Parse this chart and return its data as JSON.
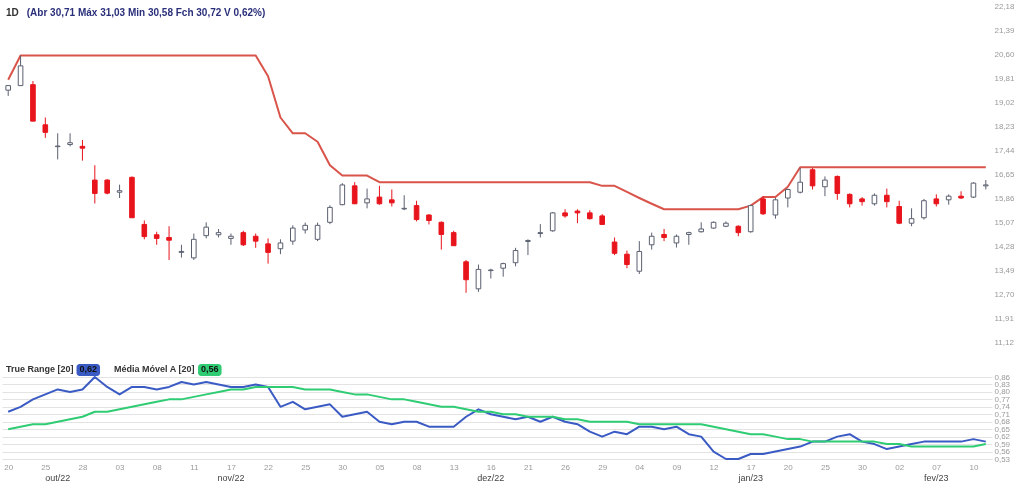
{
  "chart_data": [
    {
      "type": "candlestick",
      "title": "1D",
      "annotations": [
        "(Abr 30,71 Máx 31,03 Min 30,58 Fch 30,72 V 0,62%)"
      ],
      "categories": [
        "20",
        null,
        null,
        "25",
        null,
        null,
        "28",
        null,
        null,
        "03",
        null,
        null,
        "08",
        null,
        null,
        "11",
        null,
        null,
        "17",
        null,
        null,
        "22",
        null,
        null,
        "25",
        null,
        null,
        "30",
        null,
        null,
        "05",
        null,
        null,
        "08",
        null,
        null,
        "13",
        null,
        null,
        "16",
        null,
        null,
        "21",
        null,
        null,
        "26",
        null,
        null,
        "29",
        null,
        null,
        "04",
        null,
        null,
        "09",
        null,
        null,
        "12",
        null,
        null,
        "17",
        null,
        null,
        "20",
        null,
        null,
        "25",
        null,
        null,
        "30",
        null,
        null,
        "02",
        null,
        null,
        "07",
        null,
        null,
        "10",
        null
      ],
      "ohlc": [
        [
          19.41,
          19.58,
          19.22,
          19.56
        ],
        [
          19.56,
          20.55,
          19.56,
          20.21
        ],
        [
          19.59,
          19.71,
          18.39,
          18.39
        ],
        [
          18.27,
          18.51,
          17.84,
          18.02
        ],
        [
          17.55,
          17.99,
          17.13,
          17.57
        ],
        [
          17.62,
          17.99,
          17.56,
          17.68
        ],
        [
          17.56,
          17.77,
          17.09,
          17.5
        ],
        [
          16.45,
          16.94,
          15.68,
          16.01
        ],
        [
          16.45,
          16.48,
          15.98,
          16.02
        ],
        [
          16.05,
          16.3,
          15.86,
          16.1
        ],
        [
          16.54,
          16.57,
          15.21,
          15.21
        ],
        [
          14.99,
          15.12,
          14.5,
          14.59
        ],
        [
          14.65,
          14.75,
          14.32,
          14.53
        ],
        [
          14.56,
          14.93,
          13.82,
          14.47
        ],
        [
          14.07,
          14.32,
          13.9,
          14.1
        ],
        [
          13.89,
          14.69,
          13.82,
          14.5
        ],
        [
          14.62,
          15.06,
          14.53,
          14.9
        ],
        [
          14.65,
          14.84,
          14.56,
          14.72
        ],
        [
          14.53,
          14.69,
          14.32,
          14.6
        ],
        [
          14.72,
          14.78,
          14.28,
          14.32
        ],
        [
          14.6,
          14.69,
          14.22,
          14.44
        ],
        [
          14.35,
          14.53,
          13.7,
          14.07
        ],
        [
          14.19,
          14.5,
          14.01,
          14.38
        ],
        [
          14.44,
          14.96,
          14.32,
          14.87
        ],
        [
          14.81,
          15.05,
          14.69,
          14.96
        ],
        [
          14.5,
          15.05,
          14.44,
          14.96
        ],
        [
          15.06,
          15.62,
          15.0,
          15.55
        ],
        [
          15.64,
          16.35,
          15.62,
          16.29
        ],
        [
          16.26,
          16.38,
          15.67,
          15.67
        ],
        [
          15.7,
          16.17,
          15.52,
          15.83
        ],
        [
          15.89,
          16.26,
          15.64,
          15.67
        ],
        [
          15.8,
          16.14,
          15.58,
          15.7
        ],
        [
          15.5,
          15.95,
          15.46,
          15.52
        ],
        [
          15.61,
          15.77,
          15.09,
          15.15
        ],
        [
          15.3,
          15.33,
          14.99,
          15.12
        ],
        [
          15.06,
          15.09,
          14.16,
          14.66
        ],
        [
          14.72,
          14.78,
          14.29,
          14.29
        ],
        [
          13.76,
          13.82,
          12.74,
          13.17
        ],
        [
          12.87,
          13.67,
          12.77,
          13.51
        ],
        [
          13.47,
          13.53,
          13.21,
          13.49
        ],
        [
          13.55,
          13.73,
          13.27,
          13.7
        ],
        [
          13.73,
          14.22,
          13.61,
          14.13
        ],
        [
          14.43,
          14.5,
          13.98,
          14.46
        ],
        [
          14.69,
          15.0,
          14.56,
          14.72
        ],
        [
          14.78,
          15.4,
          14.75,
          15.37
        ],
        [
          15.37,
          15.49,
          15.21,
          15.27
        ],
        [
          15.43,
          15.49,
          15.03,
          15.37
        ],
        [
          15.37,
          15.46,
          15.15,
          15.18
        ],
        [
          15.27,
          15.33,
          14.99,
          14.99
        ],
        [
          14.41,
          14.56,
          13.98,
          14.04
        ],
        [
          14.01,
          14.13,
          13.55,
          13.67
        ],
        [
          13.45,
          14.44,
          13.36,
          14.1
        ],
        [
          14.32,
          14.72,
          14.16,
          14.6
        ],
        [
          14.66,
          14.84,
          14.44,
          14.56
        ],
        [
          14.38,
          14.66,
          14.23,
          14.6
        ],
        [
          14.66,
          14.75,
          14.32,
          14.72
        ],
        [
          14.75,
          15.06,
          14.72,
          14.84
        ],
        [
          14.87,
          15.09,
          14.84,
          15.06
        ],
        [
          14.93,
          15.09,
          14.9,
          15.03
        ],
        [
          14.93,
          14.96,
          14.6,
          14.72
        ],
        [
          14.75,
          15.64,
          14.72,
          15.61
        ],
        [
          15.83,
          15.92,
          15.3,
          15.34
        ],
        [
          15.3,
          15.86,
          15.18,
          15.8
        ],
        [
          15.86,
          16.17,
          15.55,
          16.14
        ],
        [
          16.05,
          16.85,
          16.01,
          16.38
        ],
        [
          16.79,
          16.85,
          16.14,
          16.26
        ],
        [
          16.23,
          16.57,
          15.92,
          16.45
        ],
        [
          16.57,
          16.6,
          15.8,
          16.01
        ],
        [
          15.98,
          16.01,
          15.55,
          15.67
        ],
        [
          15.83,
          15.89,
          15.61,
          15.74
        ],
        [
          15.67,
          16.01,
          15.61,
          15.95
        ],
        [
          15.95,
          16.17,
          15.55,
          15.74
        ],
        [
          15.58,
          15.77,
          15.0,
          15.03
        ],
        [
          15.03,
          15.52,
          14.93,
          15.18
        ],
        [
          15.21,
          15.83,
          15.15,
          15.77
        ],
        [
          15.83,
          15.98,
          15.58,
          15.67
        ],
        [
          15.8,
          15.98,
          15.64,
          15.92
        ],
        [
          15.92,
          16.08,
          15.83,
          15.86
        ],
        [
          15.89,
          16.38,
          15.86,
          16.35
        ],
        [
          16.26,
          16.45,
          16.14,
          16.29
        ]
      ],
      "colors": [
        "#ffffff",
        "#ffffff",
        "#e8141c",
        "#e8141c",
        "#ffffff",
        "#ffffff",
        "#e8141c",
        "#e8141c",
        "#e8141c",
        "#ffffff",
        "#e8141c",
        "#e8141c",
        "#e8141c",
        "#e8141c",
        "#ffffff",
        "#ffffff",
        "#ffffff",
        "#ffffff",
        "#ffffff",
        "#e8141c",
        "#e8141c",
        "#e8141c",
        "#ffffff",
        "#ffffff",
        "#ffffff",
        "#ffffff",
        "#ffffff",
        "#ffffff",
        "#e8141c",
        "#ffffff",
        "#e8141c",
        "#e8141c",
        "#ffffff",
        "#e8141c",
        "#e8141c",
        "#e8141c",
        "#e8141c",
        "#e8141c",
        "#ffffff",
        "#ffffff",
        "#ffffff",
        "#ffffff",
        "#ffffff",
        "#ffffff",
        "#ffffff",
        "#e8141c",
        "#e8141c",
        "#e8141c",
        "#e8141c",
        "#e8141c",
        "#e8141c",
        "#ffffff",
        "#ffffff",
        "#e8141c",
        "#ffffff",
        "#ffffff",
        "#ffffff",
        "#ffffff",
        "#ffffff",
        "#e8141c",
        "#ffffff",
        "#e8141c",
        "#ffffff",
        "#ffffff",
        "#ffffff",
        "#e8141c",
        "#ffffff",
        "#e8141c",
        "#e8141c",
        "#e8141c",
        "#ffffff",
        "#e8141c",
        "#e8141c",
        "#ffffff",
        "#ffffff",
        "#e8141c",
        "#ffffff",
        "#e8141c",
        "#ffffff",
        "#ffffff"
      ],
      "series": [
        {
          "type": "line",
          "color": "#d9544a",
          "values": [
            19.75,
            20.55,
            20.55,
            20.55,
            20.55,
            20.55,
            20.55,
            20.55,
            20.55,
            20.55,
            20.55,
            20.55,
            20.55,
            20.55,
            20.55,
            20.55,
            20.55,
            20.55,
            20.55,
            20.55,
            20.55,
            19.87,
            18.51,
            17.99,
            17.99,
            17.71,
            16.94,
            16.6,
            16.6,
            16.6,
            16.38,
            16.38,
            16.38,
            16.38,
            16.38,
            16.38,
            16.38,
            16.38,
            16.38,
            16.38,
            16.38,
            16.38,
            16.38,
            16.38,
            16.38,
            16.38,
            16.38,
            16.38,
            16.26,
            16.26,
            16.06,
            15.86,
            15.67,
            15.49,
            15.49,
            15.49,
            15.49,
            15.49,
            15.49,
            15.49,
            15.61,
            15.89,
            15.89,
            16.23,
            16.87,
            16.87,
            16.87,
            16.87,
            16.87,
            16.87,
            16.87,
            16.87,
            16.87,
            16.87,
            16.87,
            16.87,
            16.87,
            16.87,
            16.87,
            16.87
          ]
        }
      ],
      "ylim": [
        11.12,
        22.18
      ],
      "yticks": [
        {
          "value": 11.12,
          "label": "11,12"
        },
        {
          "value": 11.91,
          "label": "11,91"
        },
        {
          "value": 12.7,
          "label": "12,70"
        },
        {
          "value": 13.49,
          "label": "13,49"
        },
        {
          "value": 14.28,
          "label": "14,28"
        },
        {
          "value": 15.07,
          "label": "15,07"
        },
        {
          "value": 15.86,
          "label": "15,86"
        },
        {
          "value": 16.65,
          "label": "16,65"
        },
        {
          "value": 17.44,
          "label": "17,44"
        },
        {
          "value": 18.23,
          "label": "18,23"
        },
        {
          "value": 19.02,
          "label": "19,02"
        },
        {
          "value": 19.81,
          "label": "19,81"
        },
        {
          "value": 20.6,
          "label": "20,60"
        },
        {
          "value": 21.39,
          "label": "21,39"
        },
        {
          "value": 22.18,
          "label": "22,18"
        }
      ],
      "tick_labels": "y",
      "grid": false
    },
    {
      "type": "line",
      "categories": [
        "20",
        null,
        null,
        "25",
        null,
        null,
        "28",
        null,
        null,
        "03",
        null,
        null,
        "08",
        null,
        null,
        "11",
        null,
        null,
        "17",
        null,
        null,
        "22",
        null,
        null,
        "25",
        null,
        null,
        "30",
        null,
        null,
        "05",
        null,
        null,
        "08",
        null,
        null,
        "13",
        null,
        null,
        "16",
        null,
        null,
        "21",
        null,
        null,
        "26",
        null,
        null,
        "29",
        null,
        null,
        "04",
        null,
        null,
        "09",
        null,
        null,
        "12",
        null,
        null,
        "17",
        null,
        null,
        "20",
        null,
        null,
        "25",
        null,
        null,
        "30",
        null,
        null,
        "02",
        null,
        null,
        "07",
        null,
        null,
        "10",
        null
      ],
      "series": [
        {
          "name": "True Range [20]",
          "color": "#3b5bc4",
          "values": [
            0.72,
            0.74,
            0.77,
            0.79,
            0.81,
            0.8,
            0.81,
            0.86,
            0.82,
            0.79,
            0.82,
            0.82,
            0.81,
            0.82,
            0.84,
            0.83,
            0.84,
            0.83,
            0.82,
            0.82,
            0.83,
            0.82,
            0.74,
            0.76,
            0.73,
            0.74,
            0.75,
            0.7,
            0.71,
            0.72,
            0.68,
            0.67,
            0.68,
            0.68,
            0.66,
            0.66,
            0.66,
            0.7,
            0.73,
            0.71,
            0.7,
            0.69,
            0.7,
            0.68,
            0.7,
            0.68,
            0.67,
            0.64,
            0.62,
            0.64,
            0.63,
            0.66,
            0.66,
            0.65,
            0.66,
            0.63,
            0.62,
            0.56,
            0.53,
            0.53,
            0.55,
            0.55,
            0.56,
            0.57,
            0.58,
            0.6,
            0.6,
            0.62,
            0.63,
            0.6,
            0.59,
            0.57,
            0.58,
            0.59,
            0.6,
            0.6,
            0.6,
            0.6,
            0.61,
            0.6
          ]
        },
        {
          "name": "Média Móvel A [20]",
          "color": "#2fcc74",
          "values": [
            0.65,
            0.66,
            0.67,
            0.67,
            0.68,
            0.69,
            0.7,
            0.72,
            0.72,
            0.73,
            0.74,
            0.75,
            0.76,
            0.77,
            0.77,
            0.78,
            0.79,
            0.8,
            0.81,
            0.81,
            0.82,
            0.82,
            0.82,
            0.82,
            0.81,
            0.81,
            0.81,
            0.8,
            0.79,
            0.79,
            0.78,
            0.77,
            0.77,
            0.76,
            0.75,
            0.74,
            0.74,
            0.73,
            0.72,
            0.72,
            0.71,
            0.71,
            0.7,
            0.7,
            0.7,
            0.69,
            0.69,
            0.68,
            0.68,
            0.68,
            0.68,
            0.67,
            0.67,
            0.67,
            0.67,
            0.67,
            0.67,
            0.66,
            0.65,
            0.64,
            0.63,
            0.63,
            0.62,
            0.61,
            0.61,
            0.6,
            0.6,
            0.6,
            0.6,
            0.6,
            0.6,
            0.59,
            0.59,
            0.58,
            0.58,
            0.58,
            0.58,
            0.58,
            0.58,
            0.59
          ]
        }
      ],
      "annotations": [
        "0,62",
        "0,56",
        "out/22",
        "nov/22",
        "dez/22",
        "jan/23",
        "fev/23"
      ],
      "ylim": [
        0.53,
        0.86
      ],
      "yticks": [
        {
          "value": 0.53,
          "label": "0,53"
        },
        {
          "value": 0.56,
          "label": "0,56"
        },
        {
          "value": 0.59,
          "label": "0,59"
        },
        {
          "value": 0.62,
          "label": "0,62"
        },
        {
          "value": 0.65,
          "label": "0,65"
        },
        {
          "value": 0.68,
          "label": "0,68"
        },
        {
          "value": 0.71,
          "label": "0,71"
        },
        {
          "value": 0.74,
          "label": "0,74"
        },
        {
          "value": 0.77,
          "label": "0,77"
        },
        {
          "value": 0.8,
          "label": "0,80"
        },
        {
          "value": 0.83,
          "label": "0,83"
        },
        {
          "value": 0.86,
          "label": "0,86"
        }
      ],
      "grid": "y",
      "legend": "top left",
      "marker": "none",
      "line_style": "solid"
    }
  ]
}
